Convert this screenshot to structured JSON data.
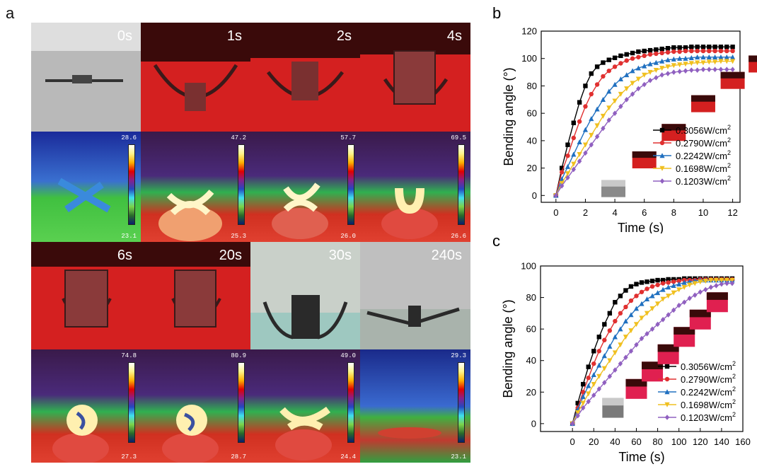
{
  "panels": {
    "a": "a",
    "b": "b",
    "c": "c"
  },
  "photos": [
    {
      "time": "0s",
      "bg": "#b4b4b4"
    },
    {
      "time": "1s",
      "bg": "#c01818"
    },
    {
      "time": "2s",
      "bg": "#c01818"
    },
    {
      "time": "4s",
      "bg": "#c01818"
    },
    {
      "time": "6s",
      "bg": "#c01818"
    },
    {
      "time": "20s",
      "bg": "#c01818"
    },
    {
      "time": "30s",
      "bg": "#c8cfc8"
    },
    {
      "time": "240s",
      "bg": "#bcbcbc"
    }
  ],
  "thermal": [
    {
      "max": "28.6",
      "min": "23.1"
    },
    {
      "max": "47.2",
      "min": "25.3"
    },
    {
      "max": "57.7",
      "min": "26.0"
    },
    {
      "max": "69.5",
      "min": "26.6"
    },
    {
      "max": "74.8",
      "min": "27.3"
    },
    {
      "max": "80.9",
      "min": "28.7"
    },
    {
      "max": "49.0",
      "min": "24.4"
    },
    {
      "max": "29.3",
      "min": "23.1"
    }
  ],
  "chart_data": [
    {
      "type": "line",
      "xlabel": "Time (s)",
      "ylabel": "Bending angle (°)",
      "xlim": [
        -1,
        12.5
      ],
      "ylim": [
        -5,
        120
      ],
      "xticks": [
        0,
        2,
        4,
        6,
        8,
        10,
        12
      ],
      "yticks": [
        0,
        20,
        40,
        60,
        80,
        100,
        120
      ],
      "grid": false,
      "legend_position": "center-right",
      "x": [
        0,
        0.4,
        0.8,
        1.2,
        1.6,
        2,
        2.4,
        2.8,
        3.2,
        3.6,
        4,
        4.4,
        4.8,
        5.2,
        5.6,
        6,
        6.4,
        6.8,
        7.2,
        7.6,
        8,
        8.4,
        8.8,
        9.2,
        9.6,
        10,
        10.4,
        10.8,
        11.2,
        11.6,
        12
      ],
      "series": [
        {
          "name": "0.3056W/cm2",
          "label_main": "0.3056W/cm",
          "label_sup": "2",
          "color": "#000000",
          "marker": "square",
          "values": [
            0,
            20,
            37,
            53,
            68,
            80,
            89,
            94,
            97,
            99,
            100.5,
            102,
            103,
            104,
            105,
            105.5,
            106,
            106.5,
            107,
            107.5,
            108,
            108,
            108,
            108.5,
            108.5,
            108.5,
            108.5,
            108.5,
            108.5,
            108.5,
            108.5
          ]
        },
        {
          "name": "0.2790W/cm2",
          "label_main": "0.2790W/cm",
          "label_sup": "2",
          "color": "#e03030",
          "marker": "circle",
          "values": [
            0,
            17,
            29,
            42,
            54,
            65,
            74,
            81,
            87,
            91,
            94,
            96.5,
            98.5,
            100,
            101,
            102,
            103,
            103.5,
            104,
            104.5,
            105,
            105,
            105.5,
            105.5,
            105.5,
            105.5,
            105.5,
            105.5,
            105.5,
            105.5,
            105.5
          ]
        },
        {
          "name": "0.2242W/cm2",
          "label_main": "0.2242W/cm",
          "label_sup": "2",
          "color": "#2070c0",
          "marker": "triangle",
          "values": [
            0,
            12,
            21,
            30,
            39,
            48,
            56,
            63,
            70,
            76,
            81,
            85,
            88,
            91,
            93,
            94.5,
            96,
            97,
            98,
            99,
            99.5,
            100,
            100,
            100.5,
            101,
            101,
            101,
            101,
            101,
            101,
            101
          ]
        },
        {
          "name": "0.1698W/cm2",
          "label_main": "0.1698W/cm",
          "label_sup": "2",
          "color": "#f0c020",
          "marker": "triangle-down",
          "values": [
            0,
            9,
            16,
            23,
            30,
            37,
            44,
            51,
            58,
            64,
            69,
            74,
            78,
            82,
            85,
            88,
            90,
            91.5,
            93,
            94,
            95,
            95.5,
            96,
            96.5,
            97,
            97,
            97.5,
            97.5,
            98,
            98,
            98
          ]
        },
        {
          "name": "0.1203W/cm2",
          "label_main": "0.1203W/cm",
          "label_sup": "2",
          "color": "#9060c0",
          "marker": "diamond",
          "values": [
            0,
            7,
            13,
            19,
            25,
            31,
            37,
            43,
            49,
            55,
            60,
            65,
            70,
            74,
            78,
            81,
            84,
            86,
            88,
            89,
            90,
            90.5,
            91,
            91.5,
            91.5,
            92,
            92,
            92,
            92,
            92,
            92
          ]
        }
      ]
    },
    {
      "type": "line",
      "xlabel": "Time (s)",
      "ylabel": "Bending angle (°)",
      "xlim": [
        -30,
        160
      ],
      "ylim": [
        -5,
        100
      ],
      "xticks": [
        0,
        20,
        40,
        60,
        80,
        100,
        120,
        140,
        160
      ],
      "yticks": [
        0,
        20,
        40,
        60,
        80,
        100
      ],
      "grid": false,
      "legend_position": "bottom-right",
      "x": [
        0,
        5,
        10,
        15,
        20,
        25,
        30,
        35,
        40,
        45,
        50,
        55,
        60,
        65,
        70,
        75,
        80,
        85,
        90,
        95,
        100,
        105,
        110,
        115,
        120,
        125,
        130,
        135,
        140,
        145,
        150
      ],
      "series": [
        {
          "name": "0.3056W/cm2",
          "label_main": "0.3056W/cm",
          "label_sup": "2",
          "color": "#000000",
          "marker": "square",
          "values": [
            0,
            13,
            25,
            36,
            46,
            55,
            63,
            70,
            77,
            81,
            84.5,
            87,
            88.5,
            89.5,
            90,
            90.5,
            91,
            91,
            91.5,
            91.5,
            91.5,
            92,
            92,
            92,
            92,
            92,
            92,
            92,
            92,
            92,
            92
          ]
        },
        {
          "name": "0.2790W/cm2",
          "label_main": "0.2790W/cm",
          "label_sup": "2",
          "color": "#e03030",
          "marker": "circle",
          "values": [
            0,
            10,
            20,
            29,
            38,
            46,
            53,
            59,
            65,
            70,
            74,
            78,
            81,
            83.5,
            85.5,
            87,
            88,
            89,
            89.5,
            90,
            90.5,
            91,
            91,
            91,
            91.5,
            91.5,
            91.5,
            91.5,
            91.5,
            91.5,
            91.5
          ]
        },
        {
          "name": "0.2242W/cm2",
          "label_main": "0.2242W/cm",
          "label_sup": "2",
          "color": "#2070c0",
          "marker": "triangle",
          "values": [
            0,
            9,
            17,
            24,
            31,
            37,
            43,
            49,
            55,
            60,
            65,
            69,
            73,
            76,
            79,
            81,
            83,
            85,
            86.5,
            87.5,
            88.5,
            89.5,
            90,
            90.5,
            91,
            91,
            91,
            91,
            91,
            91,
            91
          ]
        },
        {
          "name": "0.1698W/cm2",
          "label_main": "0.1698W/cm",
          "label_sup": "2",
          "color": "#f0c020",
          "marker": "triangle-down",
          "values": [
            0,
            7,
            13,
            19,
            25,
            30,
            35,
            40,
            45,
            50,
            55,
            59,
            63,
            67,
            70,
            73,
            76,
            79,
            81,
            83,
            85,
            86.5,
            88,
            89,
            90,
            90.5,
            91,
            91,
            91,
            91,
            91
          ]
        },
        {
          "name": "0.1203W/cm2",
          "label_main": "0.1203W/cm",
          "label_sup": "2",
          "color": "#9060c0",
          "marker": "diamond",
          "values": [
            0,
            5,
            10,
            14,
            18,
            22,
            26,
            30,
            34,
            38,
            42,
            46,
            50,
            54,
            57,
            60,
            63,
            66,
            69,
            72,
            75,
            77,
            79.5,
            81.5,
            83.5,
            85,
            86.5,
            87.5,
            88.5,
            89,
            89
          ]
        }
      ]
    }
  ]
}
